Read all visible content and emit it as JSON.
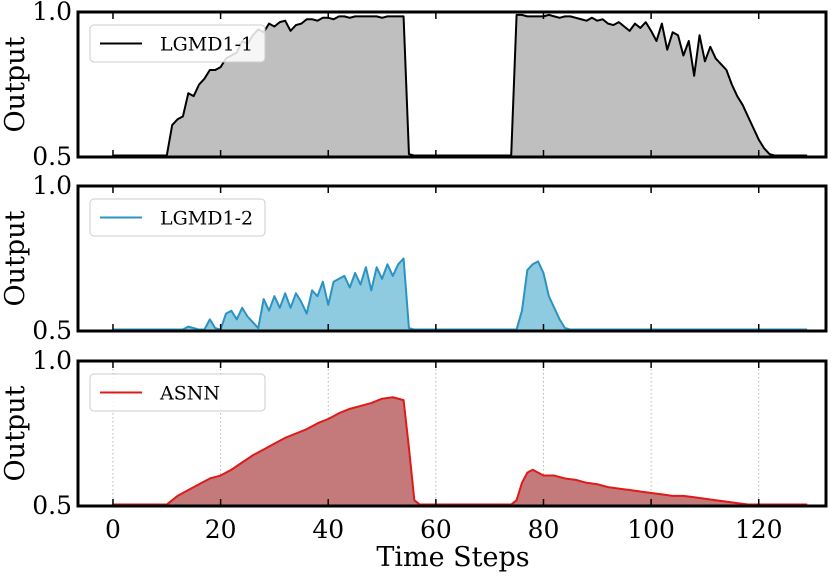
{
  "chart_data": {
    "type": "area",
    "xlabel": "Time Steps",
    "xlim": [
      -6.5,
      132.5
    ],
    "xticks": [
      0,
      20,
      40,
      60,
      80,
      100,
      120
    ],
    "panels": [
      {
        "name": "LGMD1-1",
        "ylabel": "Output",
        "ylim": [
          0.5,
          1.0
        ],
        "yticks": [
          "0.5",
          "1.0"
        ],
        "line_color": "#000000",
        "fill_color": "#bfbfbf",
        "xgrid": false,
        "legend_position": "top-left",
        "x": [
          0,
          10,
          11,
          12,
          13,
          14,
          15,
          16,
          17,
          18,
          19,
          20,
          21,
          22,
          23,
          24,
          25,
          26,
          27,
          28,
          29,
          30,
          31,
          32,
          33,
          34,
          35,
          36,
          37,
          38,
          39,
          40,
          41,
          42,
          43,
          44,
          45,
          46,
          47,
          48,
          49,
          50,
          51,
          52,
          53,
          54,
          55,
          56,
          74,
          75,
          76,
          77,
          78,
          79,
          80,
          81,
          82,
          83,
          84,
          85,
          86,
          87,
          88,
          89,
          90,
          91,
          92,
          93,
          94,
          95,
          96,
          97,
          98,
          99,
          100,
          101,
          102,
          103,
          104,
          105,
          106,
          107,
          108,
          109,
          110,
          111,
          112,
          113,
          114,
          115,
          116,
          117,
          118,
          119,
          120,
          121,
          122,
          123,
          129
        ],
        "values": [
          0.505,
          0.505,
          0.61,
          0.63,
          0.64,
          0.72,
          0.71,
          0.75,
          0.77,
          0.8,
          0.8,
          0.81,
          0.84,
          0.85,
          0.86,
          0.9,
          0.89,
          0.92,
          0.94,
          0.93,
          0.96,
          0.95,
          0.965,
          0.97,
          0.935,
          0.955,
          0.96,
          0.975,
          0.975,
          0.97,
          0.98,
          0.98,
          0.975,
          0.985,
          0.985,
          0.98,
          0.985,
          0.985,
          0.985,
          0.985,
          0.985,
          0.98,
          0.985,
          0.985,
          0.985,
          0.985,
          0.51,
          0.505,
          0.505,
          0.99,
          0.99,
          0.985,
          0.985,
          0.985,
          0.985,
          0.99,
          0.985,
          0.98,
          0.985,
          0.985,
          0.98,
          0.975,
          0.97,
          0.98,
          0.97,
          0.975,
          0.96,
          0.955,
          0.965,
          0.95,
          0.935,
          0.96,
          0.945,
          0.965,
          0.935,
          0.9,
          0.96,
          0.87,
          0.93,
          0.92,
          0.85,
          0.9,
          0.78,
          0.92,
          0.83,
          0.88,
          0.84,
          0.82,
          0.8,
          0.75,
          0.71,
          0.68,
          0.64,
          0.6,
          0.56,
          0.53,
          0.51,
          0.505,
          0.505
        ]
      },
      {
        "name": "LGMD1-2",
        "ylabel": "Output",
        "ylim": [
          0.5,
          1.0
        ],
        "yticks": [
          "0.5",
          "1.0"
        ],
        "line_color": "#2a93c2",
        "fill_color": "#8ecae0",
        "xgrid": false,
        "legend_position": "top-left",
        "x": [
          0,
          13,
          14,
          15,
          16,
          17,
          18,
          19,
          20,
          21,
          22,
          23,
          24,
          25,
          26,
          27,
          28,
          29,
          30,
          31,
          32,
          33,
          34,
          35,
          36,
          37,
          38,
          39,
          40,
          41,
          42,
          43,
          44,
          45,
          46,
          47,
          48,
          49,
          50,
          51,
          52,
          53,
          54,
          55,
          56,
          75,
          76,
          77,
          78,
          79,
          80,
          81,
          82,
          83,
          84,
          85,
          129
        ],
        "values": [
          0.505,
          0.505,
          0.515,
          0.51,
          0.505,
          0.505,
          0.54,
          0.51,
          0.505,
          0.56,
          0.57,
          0.54,
          0.58,
          0.55,
          0.53,
          0.51,
          0.61,
          0.57,
          0.62,
          0.58,
          0.63,
          0.58,
          0.63,
          0.6,
          0.56,
          0.64,
          0.62,
          0.67,
          0.59,
          0.67,
          0.68,
          0.69,
          0.65,
          0.7,
          0.66,
          0.72,
          0.64,
          0.72,
          0.68,
          0.73,
          0.69,
          0.73,
          0.75,
          0.51,
          0.505,
          0.505,
          0.57,
          0.71,
          0.73,
          0.74,
          0.7,
          0.62,
          0.58,
          0.54,
          0.51,
          0.505,
          0.505
        ]
      },
      {
        "name": "ASNN",
        "ylabel": "Output",
        "ylim": [
          0.5,
          1.0
        ],
        "yticks": [
          "0.5",
          "1.0"
        ],
        "line_color": "#e01919",
        "fill_color": "#c47a7a",
        "xgrid": true,
        "legend_position": "top-left",
        "x": [
          0,
          10,
          12,
          14,
          16,
          18,
          20,
          22,
          24,
          26,
          28,
          30,
          32,
          34,
          36,
          38,
          40,
          42,
          44,
          46,
          48,
          50,
          52,
          54,
          55,
          56,
          57,
          74,
          75,
          76,
          77,
          78,
          79,
          80,
          82,
          84,
          86,
          88,
          90,
          92,
          94,
          96,
          98,
          100,
          102,
          104,
          106,
          108,
          110,
          112,
          114,
          116,
          118,
          120,
          122,
          129
        ],
        "values": [
          0.505,
          0.505,
          0.535,
          0.555,
          0.575,
          0.595,
          0.605,
          0.625,
          0.65,
          0.675,
          0.695,
          0.715,
          0.735,
          0.75,
          0.765,
          0.785,
          0.8,
          0.82,
          0.835,
          0.845,
          0.855,
          0.87,
          0.875,
          0.865,
          0.7,
          0.52,
          0.505,
          0.505,
          0.52,
          0.58,
          0.615,
          0.625,
          0.615,
          0.605,
          0.605,
          0.595,
          0.59,
          0.58,
          0.575,
          0.565,
          0.56,
          0.555,
          0.55,
          0.545,
          0.54,
          0.535,
          0.535,
          0.53,
          0.525,
          0.52,
          0.515,
          0.51,
          0.505,
          0.505,
          0.505,
          0.505
        ]
      }
    ]
  }
}
